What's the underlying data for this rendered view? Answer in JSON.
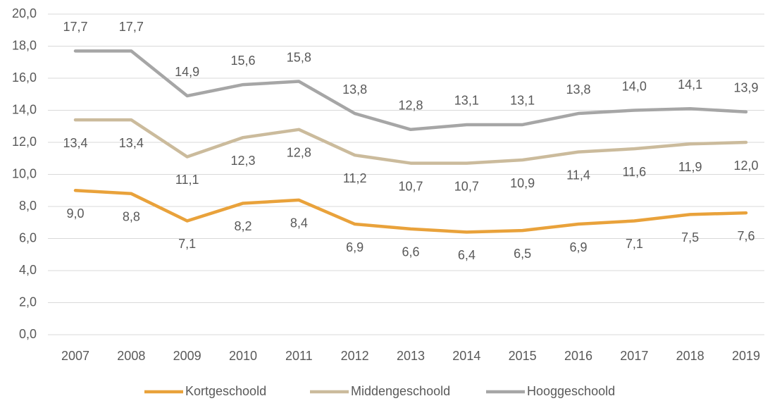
{
  "chart_data": {
    "type": "line",
    "categories": [
      "2007",
      "2008",
      "2009",
      "2010",
      "2011",
      "2012",
      "2013",
      "2014",
      "2015",
      "2016",
      "2017",
      "2018",
      "2019"
    ],
    "series": [
      {
        "name": "Kortgeschoold",
        "color": "#e9a23b",
        "label_side": "below",
        "values": [
          9.0,
          8.8,
          7.1,
          8.2,
          8.4,
          6.9,
          6.6,
          6.4,
          6.5,
          6.9,
          7.1,
          7.5,
          7.6
        ],
        "value_labels": [
          "9,0",
          "8,8",
          "7,1",
          "8,2",
          "8,4",
          "6,9",
          "6,6",
          "6,4",
          "6,5",
          "6,9",
          "7,1",
          "7,5",
          "7,6"
        ]
      },
      {
        "name": "Middengeschoold",
        "color": "#cbbb9c",
        "label_side": "below",
        "values": [
          13.4,
          13.4,
          11.1,
          12.3,
          12.8,
          11.2,
          10.7,
          10.7,
          10.9,
          11.4,
          11.6,
          11.9,
          12.0
        ],
        "value_labels": [
          "13,4",
          "13,4",
          "11,1",
          "12,3",
          "12,8",
          "11,2",
          "10,7",
          "10,7",
          "10,9",
          "11,4",
          "11,6",
          "11,9",
          "12,0"
        ]
      },
      {
        "name": "Hooggeschoold",
        "color": "#a6a6a6",
        "label_side": "above",
        "values": [
          17.7,
          17.7,
          14.9,
          15.6,
          15.8,
          13.8,
          12.8,
          13.1,
          13.1,
          13.8,
          14.0,
          14.1,
          13.9
        ],
        "value_labels": [
          "17,7",
          "17,7",
          "14,9",
          "15,6",
          "15,8",
          "13,8",
          "12,8",
          "13,1",
          "13,1",
          "13,8",
          "14,0",
          "14,1",
          "13,9"
        ]
      }
    ],
    "ylim": [
      0,
      20
    ],
    "yticks": [
      {
        "value": 0,
        "label": "0,0"
      },
      {
        "value": 2,
        "label": "2,0"
      },
      {
        "value": 4,
        "label": "4,0"
      },
      {
        "value": 6,
        "label": "6,0"
      },
      {
        "value": 8,
        "label": "8,0"
      },
      {
        "value": 10,
        "label": "10,0"
      },
      {
        "value": 12,
        "label": "12,0"
      },
      {
        "value": 14,
        "label": "14,0"
      },
      {
        "value": 16,
        "label": "16,0"
      },
      {
        "value": 18,
        "label": "18,0"
      },
      {
        "value": 20,
        "label": "20,0"
      }
    ],
    "grid": true,
    "legend": "bottom"
  }
}
